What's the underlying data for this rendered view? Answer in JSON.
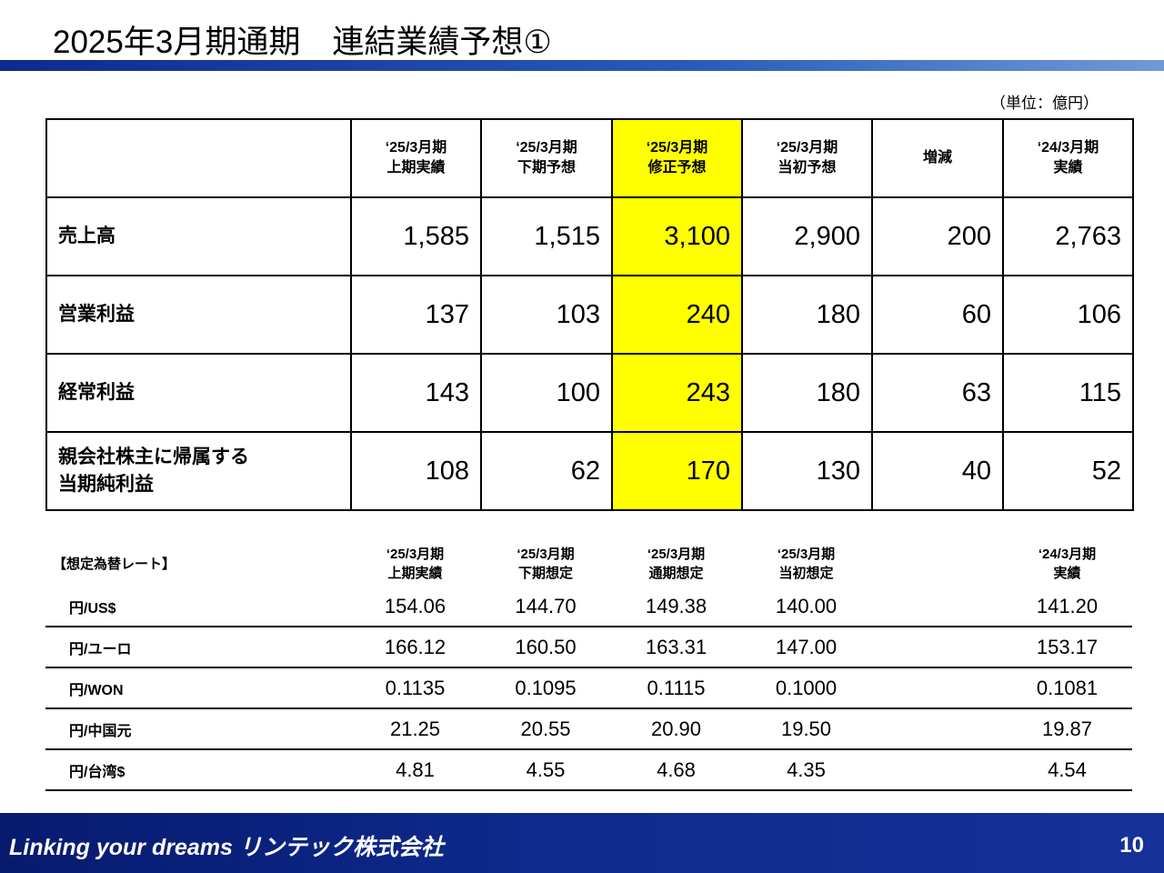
{
  "title": "2025年3月期通期　連結業績予想①",
  "unit": "（単位：億円）",
  "main_table": {
    "headers": [
      "",
      "‘25/3月期\n上期実績",
      "‘25/3月期\n下期予想",
      "‘25/3月期\n修正予想",
      "‘25/3月期\n当初予想",
      "増減",
      "‘24/3月期\n実績"
    ],
    "rows": [
      {
        "label": "売上高",
        "values": [
          "1,585",
          "1,515",
          "3,100",
          "2,900",
          "200",
          "2,763"
        ]
      },
      {
        "label": "営業利益",
        "values": [
          "137",
          "103",
          "240",
          "180",
          "60",
          "106"
        ]
      },
      {
        "label": "経常利益",
        "values": [
          "143",
          "100",
          "243",
          "180",
          "63",
          "115"
        ]
      },
      {
        "label": "親会社株主に帰属する\n当期純利益",
        "values": [
          "108",
          "62",
          "170",
          "130",
          "40",
          "52"
        ]
      }
    ],
    "highlight_color": "#ffff00"
  },
  "fx_table": {
    "title": "【想定為替レート】",
    "headers": [
      "‘25/3月期\n上期実績",
      "‘25/3月期\n下期想定",
      "‘25/3月期\n通期想定",
      "‘25/3月期\n当初想定",
      "",
      "‘24/3月期\n実績"
    ],
    "rows": [
      {
        "label": "円/US$",
        "values": [
          "154.06",
          "144.70",
          "149.38",
          "140.00",
          "",
          "141.20"
        ]
      },
      {
        "label": "円/ユーロ",
        "values": [
          "166.12",
          "160.50",
          "163.31",
          "147.00",
          "",
          "153.17"
        ]
      },
      {
        "label": "円/WON",
        "values": [
          "0.1135",
          "0.1095",
          "0.1115",
          "0.1000",
          "",
          "0.1081"
        ]
      },
      {
        "label": "円/中国元",
        "values": [
          "21.25",
          "20.55",
          "20.90",
          "19.50",
          "",
          "19.87"
        ]
      },
      {
        "label": "円/台湾$",
        "values": [
          "4.81",
          "4.55",
          "4.68",
          "4.35",
          "",
          "4.54"
        ]
      }
    ]
  },
  "footer": {
    "tagline": "Linking your dreams  リンテック株式会社",
    "page_number": "10"
  }
}
